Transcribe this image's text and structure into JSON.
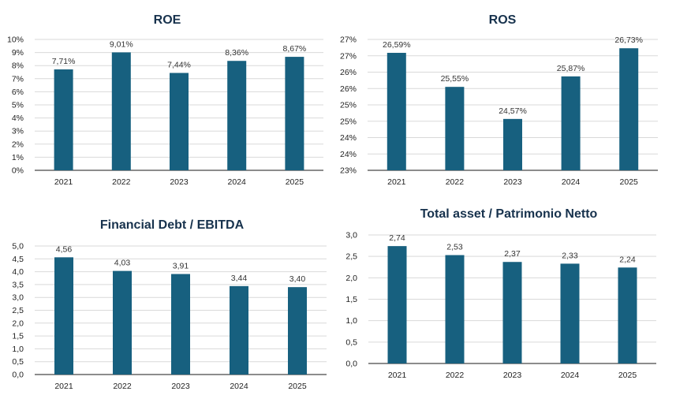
{
  "bar_color": "#17607f",
  "chart_data": [
    {
      "type": "bar",
      "title": "ROE",
      "categories": [
        "2021",
        "2022",
        "2023",
        "2024",
        "2025"
      ],
      "values": [
        7.71,
        9.01,
        7.44,
        8.36,
        8.67
      ],
      "data_labels": [
        "7,71%",
        "9,01%",
        "7,44%",
        "8,36%",
        "8,67%"
      ],
      "ylim": [
        0,
        10
      ],
      "yticks": [
        "0%",
        "1%",
        "2%",
        "3%",
        "4%",
        "5%",
        "6%",
        "7%",
        "8%",
        "9%",
        "10%"
      ],
      "grid": true,
      "xlabel": "",
      "ylabel": ""
    },
    {
      "type": "bar",
      "title": "ROS",
      "categories": [
        "2021",
        "2022",
        "2023",
        "2024",
        "2025"
      ],
      "values": [
        26.59,
        25.55,
        24.57,
        25.87,
        26.73
      ],
      "data_labels": [
        "26,59%",
        "25,55%",
        "24,57%",
        "25,87%",
        "26,73%"
      ],
      "ylim": [
        23,
        27
      ],
      "yticks": [
        "23%",
        "24%",
        "24%",
        "25%",
        "25%",
        "26%",
        "26%",
        "27%",
        "27%"
      ],
      "grid": true,
      "xlabel": "",
      "ylabel": ""
    },
    {
      "type": "bar",
      "title": "Financial Debt / EBITDA",
      "categories": [
        "2021",
        "2022",
        "2023",
        "2024",
        "2025"
      ],
      "values": [
        4.56,
        4.03,
        3.91,
        3.44,
        3.4
      ],
      "data_labels": [
        "4,56",
        "4,03",
        "3,91",
        "3,44",
        "3,40"
      ],
      "ylim": [
        0,
        5
      ],
      "yticks": [
        "0,0",
        "0,5",
        "1,0",
        "1,5",
        "2,0",
        "2,5",
        "3,0",
        "3,5",
        "4,0",
        "4,5",
        "5,0"
      ],
      "grid": true,
      "xlabel": "",
      "ylabel": ""
    },
    {
      "type": "bar",
      "title": "Total asset /  Patrimonio Netto",
      "categories": [
        "2021",
        "2022",
        "2023",
        "2024",
        "2025"
      ],
      "values": [
        2.74,
        2.53,
        2.37,
        2.33,
        2.24
      ],
      "data_labels": [
        "2,74",
        "2,53",
        "2,37",
        "2,33",
        "2,24"
      ],
      "ylim": [
        0,
        3
      ],
      "yticks": [
        "0,0",
        "0,5",
        "1,0",
        "1,5",
        "2,0",
        "2,5",
        "3,0"
      ],
      "grid": true,
      "xlabel": "",
      "ylabel": ""
    }
  ]
}
